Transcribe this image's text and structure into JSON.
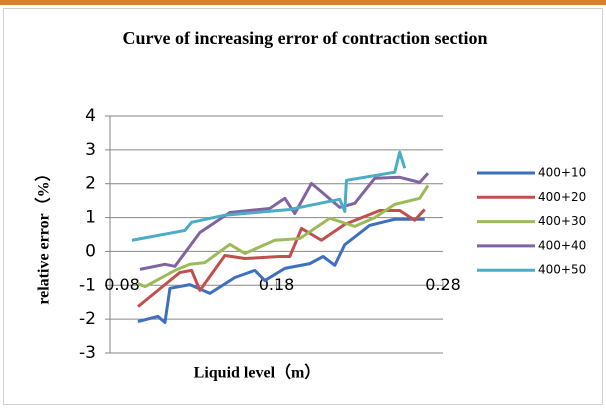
{
  "chart_data": {
    "type": "line",
    "title": "Curve of increasing error of contraction section",
    "xlabel": "Liquid level（m）",
    "ylabel": "relative error（%）",
    "xlim": [
      0.08,
      0.28
    ],
    "xticks": [
      0.08,
      0.18,
      0.28
    ],
    "ylim": [
      -3,
      4
    ],
    "yticks": [
      -3,
      -2,
      -1,
      0,
      1,
      2,
      3,
      4
    ],
    "grid": true,
    "legend": "right",
    "series": [
      {
        "name": "400+10",
        "color": "#3f6fbf",
        "x": [
          0.0968,
          0.1088,
          0.113,
          0.116,
          0.128,
          0.14,
          0.155,
          0.167,
          0.173,
          0.185,
          0.2,
          0.208,
          0.215,
          0.221,
          0.236,
          0.251,
          0.269
        ],
        "values": [
          -2.07,
          -1.92,
          -2.1,
          -1.09,
          -0.98,
          -1.24,
          -0.77,
          -0.56,
          -0.86,
          -0.5,
          -0.36,
          -0.15,
          -0.41,
          0.2,
          0.77,
          0.95,
          0.95
        ]
      },
      {
        "name": "400+20",
        "color": "#c0504d",
        "x": [
          0.0968,
          0.113,
          0.122,
          0.129,
          0.134,
          0.149,
          0.161,
          0.182,
          0.188,
          0.195,
          0.207,
          0.221,
          0.242,
          0.254,
          0.263,
          0.269
        ],
        "values": [
          -1.63,
          -0.98,
          -0.62,
          -0.56,
          -1.15,
          -0.12,
          -0.21,
          -0.15,
          -0.15,
          0.68,
          0.33,
          0.8,
          1.21,
          1.21,
          0.92,
          1.24
        ]
      },
      {
        "name": "400+30",
        "color": "#9bbb59",
        "x": [
          0.0968,
          0.101,
          0.119,
          0.128,
          0.137,
          0.152,
          0.161,
          0.179,
          0.194,
          0.212,
          0.227,
          0.239,
          0.251,
          0.266,
          0.271
        ],
        "values": [
          -0.95,
          -1.04,
          -0.56,
          -0.38,
          -0.33,
          0.21,
          -0.06,
          0.33,
          0.38,
          0.98,
          0.74,
          1.0,
          1.39,
          1.57,
          1.95
        ]
      },
      {
        "name": "400+40",
        "color": "#8064a2",
        "x": [
          0.098,
          0.113,
          0.119,
          0.134,
          0.152,
          0.176,
          0.185,
          0.191,
          0.201,
          0.218,
          0.227,
          0.239,
          0.254,
          0.266,
          0.271
        ],
        "values": [
          -0.53,
          -0.38,
          -0.44,
          0.56,
          1.15,
          1.27,
          1.57,
          1.12,
          2.01,
          1.3,
          1.42,
          2.16,
          2.19,
          2.04,
          2.31
        ]
      },
      {
        "name": "400+50",
        "color": "#4bacc6",
        "x": [
          0.0932,
          0.125,
          0.129,
          0.149,
          0.188,
          0.218,
          0.221,
          0.222,
          0.251,
          0.254,
          0.257
        ],
        "values": [
          0.33,
          0.62,
          0.86,
          1.07,
          1.24,
          1.54,
          1.18,
          2.1,
          2.34,
          2.93,
          2.46
        ]
      }
    ]
  }
}
